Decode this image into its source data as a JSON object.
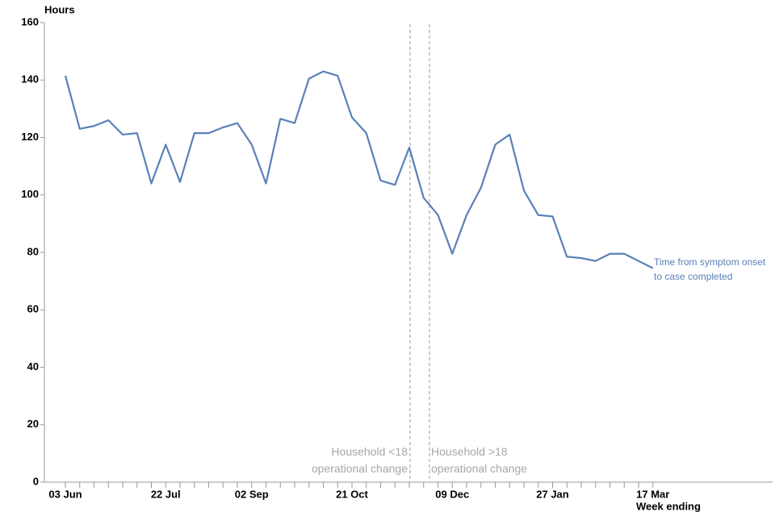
{
  "chart_data": {
    "type": "line",
    "y_label": "Hours",
    "x_label": "Week ending",
    "categories": [
      "03 Jun",
      null,
      null,
      null,
      null,
      null,
      null,
      "22 Jul",
      null,
      null,
      null,
      null,
      null,
      "02 Sep",
      null,
      null,
      null,
      null,
      null,
      null,
      "21 Oct",
      null,
      null,
      null,
      null,
      null,
      null,
      "09 Dec",
      null,
      null,
      null,
      null,
      null,
      null,
      "27 Jan",
      null,
      null,
      null,
      null,
      null,
      null,
      "17 Mar"
    ],
    "series": [
      {
        "name": "Time from symptom onset to case completed",
        "color": "#5a80b8",
        "values": [
          141.5,
          123,
          124,
          126,
          121,
          121.5,
          104,
          117.5,
          104.5,
          121.5,
          121.5,
          123.5,
          125,
          117.5,
          104,
          126.5,
          125,
          140.5,
          143,
          141.5,
          127,
          121.5,
          105,
          103.5,
          116.5,
          99,
          93,
          79.5,
          93,
          102.5,
          117.5,
          121,
          101.5,
          93,
          92.5,
          78.5,
          78,
          77,
          79.5,
          79.5,
          77,
          74.5
        ]
      }
    ],
    "ylim": [
      0,
      160
    ],
    "yticks": [
      0,
      20,
      40,
      60,
      80,
      100,
      120,
      140,
      160
    ],
    "annotations": [
      "Household <18 operational change",
      "Household >18 operational change"
    ]
  }
}
